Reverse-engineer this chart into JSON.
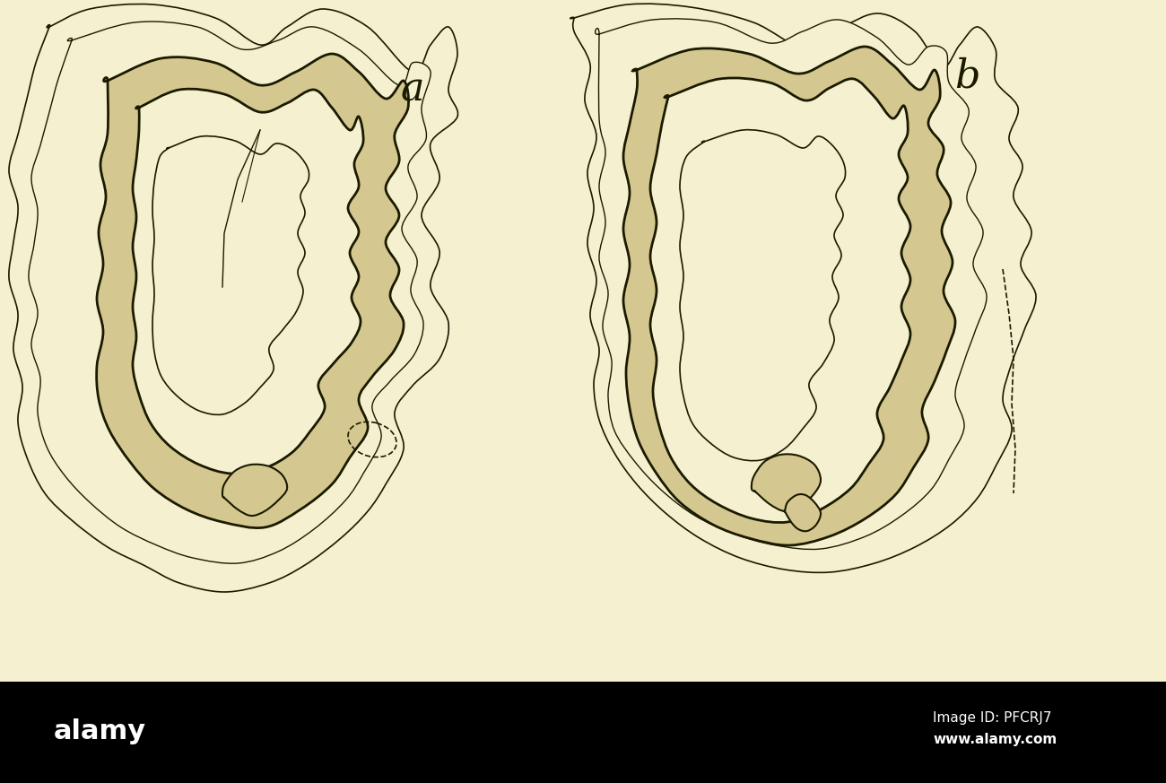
{
  "background_color": "#f5f0d0",
  "line_color": "#1a1a00",
  "dotted_fill_color": "#d4c890",
  "label_a": "a",
  "label_b": "b",
  "label_fontsize": 32,
  "label_style": "italic",
  "watermark_text": "Image ID: PFCRJ7\nwww.alamy.com",
  "alamy_text": "alamy",
  "bottom_bar_color": "#000000",
  "fig_width": 13.0,
  "fig_height": 8.73
}
